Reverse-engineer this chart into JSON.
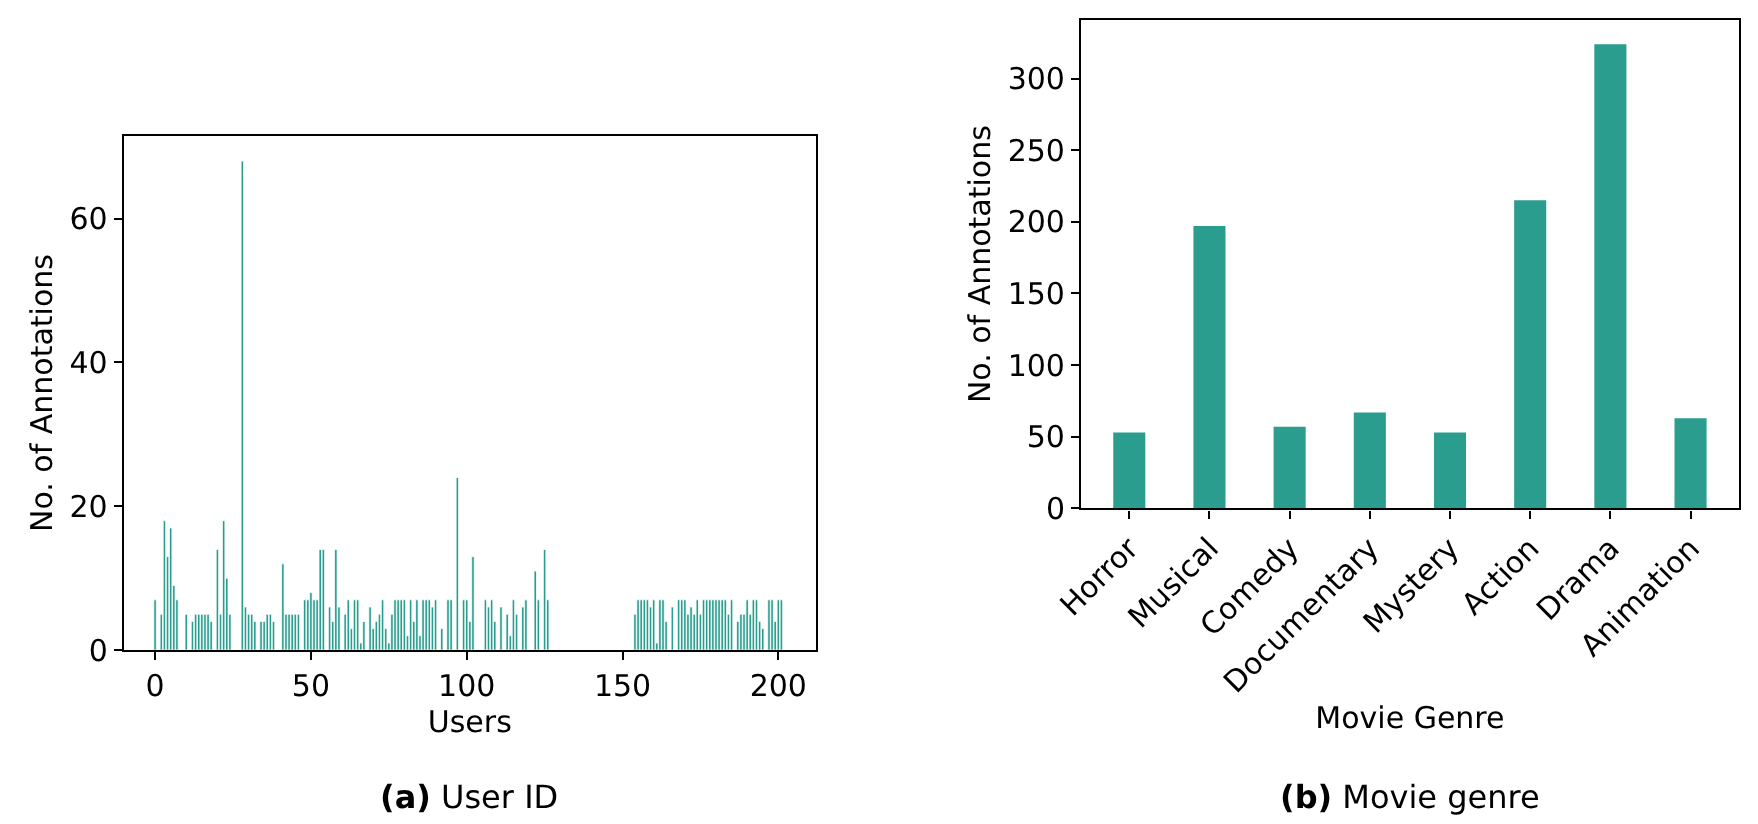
{
  "chart_data": [
    {
      "type": "bar",
      "title": "(a) User ID",
      "xlabel": "Users",
      "ylabel": "No. of Annotations",
      "color": "#2a9d8f",
      "x": [
        0,
        2,
        3,
        4,
        5,
        6,
        7,
        10,
        12,
        13,
        14,
        15,
        16,
        17,
        18,
        20,
        21,
        22,
        23,
        24,
        28,
        29,
        30,
        31,
        32,
        34,
        35,
        36,
        37,
        38,
        41,
        42,
        43,
        44,
        45,
        46,
        48,
        49,
        50,
        51,
        52,
        53,
        54,
        56,
        57,
        58,
        59,
        61,
        62,
        63,
        64,
        65,
        66,
        67,
        69,
        70,
        71,
        72,
        73,
        74,
        75,
        76,
        77,
        78,
        79,
        80,
        81,
        82,
        83,
        84,
        85,
        86,
        87,
        88,
        89,
        90,
        92,
        94,
        95,
        97,
        99,
        100,
        101,
        102,
        106,
        107,
        108,
        109,
        111,
        113,
        114,
        115,
        116,
        118,
        119,
        122,
        123,
        125,
        126,
        154,
        155,
        156,
        157,
        158,
        159,
        160,
        161,
        162,
        163,
        164,
        166,
        168,
        169,
        170,
        171,
        172,
        173,
        174,
        175,
        176,
        177,
        178,
        179,
        180,
        181,
        182,
        183,
        184,
        185,
        187,
        188,
        189,
        190,
        191,
        192,
        193,
        194,
        195,
        197,
        198,
        199,
        200,
        201
      ],
      "values": [
        7,
        5,
        18,
        13,
        17,
        9,
        7,
        5,
        4,
        5,
        5,
        5,
        5,
        5,
        4,
        14,
        5,
        18,
        10,
        5,
        68,
        6,
        5,
        5,
        4,
        4,
        4,
        5,
        5,
        4,
        12,
        5,
        5,
        5,
        5,
        5,
        7,
        7,
        8,
        7,
        7,
        14,
        14,
        6,
        4,
        14,
        6,
        5,
        7,
        3,
        7,
        7,
        1,
        4,
        6,
        3,
        4,
        5,
        7,
        3,
        1,
        5,
        7,
        7,
        7,
        7,
        2,
        7,
        4,
        7,
        2,
        7,
        7,
        7,
        6,
        7,
        3,
        7,
        7,
        24,
        7,
        7,
        4,
        13,
        7,
        6,
        7,
        4,
        6,
        5,
        2,
        7,
        5,
        6,
        7,
        11,
        7,
        14,
        7,
        5,
        7,
        7,
        7,
        7,
        6,
        7,
        1,
        7,
        7,
        4,
        6,
        7,
        7,
        7,
        5,
        6,
        5,
        7,
        5,
        7,
        7,
        7,
        7,
        7,
        7,
        7,
        7,
        5,
        7,
        4,
        5,
        5,
        7,
        5,
        7,
        7,
        4,
        3,
        7,
        7,
        4,
        7,
        7
      ],
      "xlim": [
        -10,
        212
      ],
      "xticks": [
        0,
        50,
        100,
        150,
        200
      ],
      "ylim": [
        0,
        71.5
      ],
      "yticks": [
        0,
        20,
        40,
        60
      ]
    },
    {
      "type": "bar",
      "title": "(b) Movie genre",
      "xlabel": "Movie Genre",
      "ylabel": "No. of Annotations",
      "color": "#2a9d8f",
      "categories": [
        "Horror",
        "Musical",
        "Comedy",
        "Documentary",
        "Mystery",
        "Action",
        "Drama",
        "Animation"
      ],
      "values": [
        53,
        197,
        57,
        67,
        53,
        215,
        324,
        63
      ],
      "ylim": [
        0,
        341
      ],
      "yticks": [
        0,
        50,
        100,
        150,
        200,
        250,
        300
      ]
    }
  ]
}
